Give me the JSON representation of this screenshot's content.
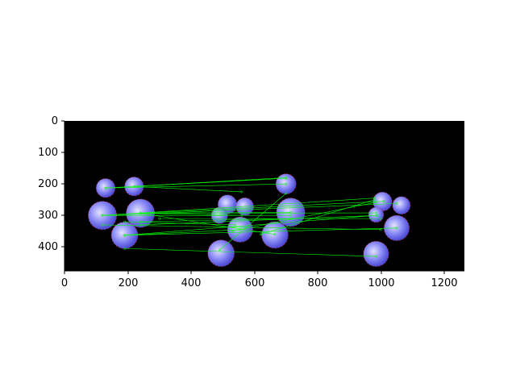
{
  "figure": {
    "x_ticks": [
      "0",
      "200",
      "400",
      "600",
      "800",
      "1000",
      "1200"
    ],
    "y_ticks": [
      "0",
      "100",
      "200",
      "300",
      "400"
    ],
    "x_range": [
      0,
      1264
    ],
    "y_range": [
      476,
      0
    ],
    "colors": {
      "background": "#000000",
      "sphere": "#7b7bf2",
      "sphere_highlight": "#d8d8ff",
      "match_line": "#00ff00",
      "keypoint": "#ff2020"
    },
    "left_spheres": [
      {
        "x": 130,
        "y": 213,
        "r": 30
      },
      {
        "x": 220,
        "y": 208,
        "r": 30
      },
      {
        "x": 120,
        "y": 300,
        "r": 45
      },
      {
        "x": 240,
        "y": 293,
        "r": 45
      },
      {
        "x": 190,
        "y": 363,
        "r": 42
      },
      {
        "x": 295,
        "y": 0,
        "r": 0
      }
    ],
    "right_spheres": [
      {
        "x": 700,
        "y": 200,
        "r": 32
      },
      {
        "x": 515,
        "y": 265,
        "r": 30
      },
      {
        "x": 570,
        "y": 272,
        "r": 28
      },
      {
        "x": 490,
        "y": 300,
        "r": 26
      },
      {
        "x": 555,
        "y": 345,
        "r": 40
      },
      {
        "x": 665,
        "y": 362,
        "r": 42
      },
      {
        "x": 715,
        "y": 290,
        "r": 45
      },
      {
        "x": 495,
        "y": 420,
        "r": 42
      },
      {
        "x": 1005,
        "y": 256,
        "r": 30
      },
      {
        "x": 1065,
        "y": 268,
        "r": 28
      },
      {
        "x": 985,
        "y": 298,
        "r": 24
      },
      {
        "x": 1050,
        "y": 340,
        "r": 40
      },
      {
        "x": 985,
        "y": 422,
        "r": 40
      }
    ],
    "matches": [
      [
        130,
        213,
        700,
        180
      ],
      [
        220,
        208,
        700,
        182
      ],
      [
        130,
        213,
        700,
        200
      ],
      [
        220,
        208,
        560,
        225
      ],
      [
        120,
        300,
        980,
        245
      ],
      [
        240,
        293,
        1010,
        255
      ],
      [
        120,
        300,
        1050,
        262
      ],
      [
        240,
        293,
        985,
        292
      ],
      [
        190,
        363,
        1050,
        340
      ],
      [
        190,
        363,
        985,
        300
      ],
      [
        240,
        293,
        715,
        290
      ],
      [
        120,
        300,
        715,
        300
      ],
      [
        190,
        363,
        555,
        345
      ],
      [
        240,
        293,
        665,
        360
      ],
      [
        190,
        405,
        985,
        430
      ],
      [
        120,
        330,
        1000,
        345
      ],
      [
        240,
        330,
        990,
        300
      ],
      [
        240,
        293,
        560,
        300
      ],
      [
        490,
        410,
        700,
        230
      ],
      [
        530,
        350,
        985,
        258
      ],
      [
        620,
        360,
        980,
        250
      ],
      [
        240,
        320,
        720,
        310
      ],
      [
        190,
        320,
        540,
        330
      ],
      [
        300,
        310,
        1000,
        310
      ]
    ]
  }
}
